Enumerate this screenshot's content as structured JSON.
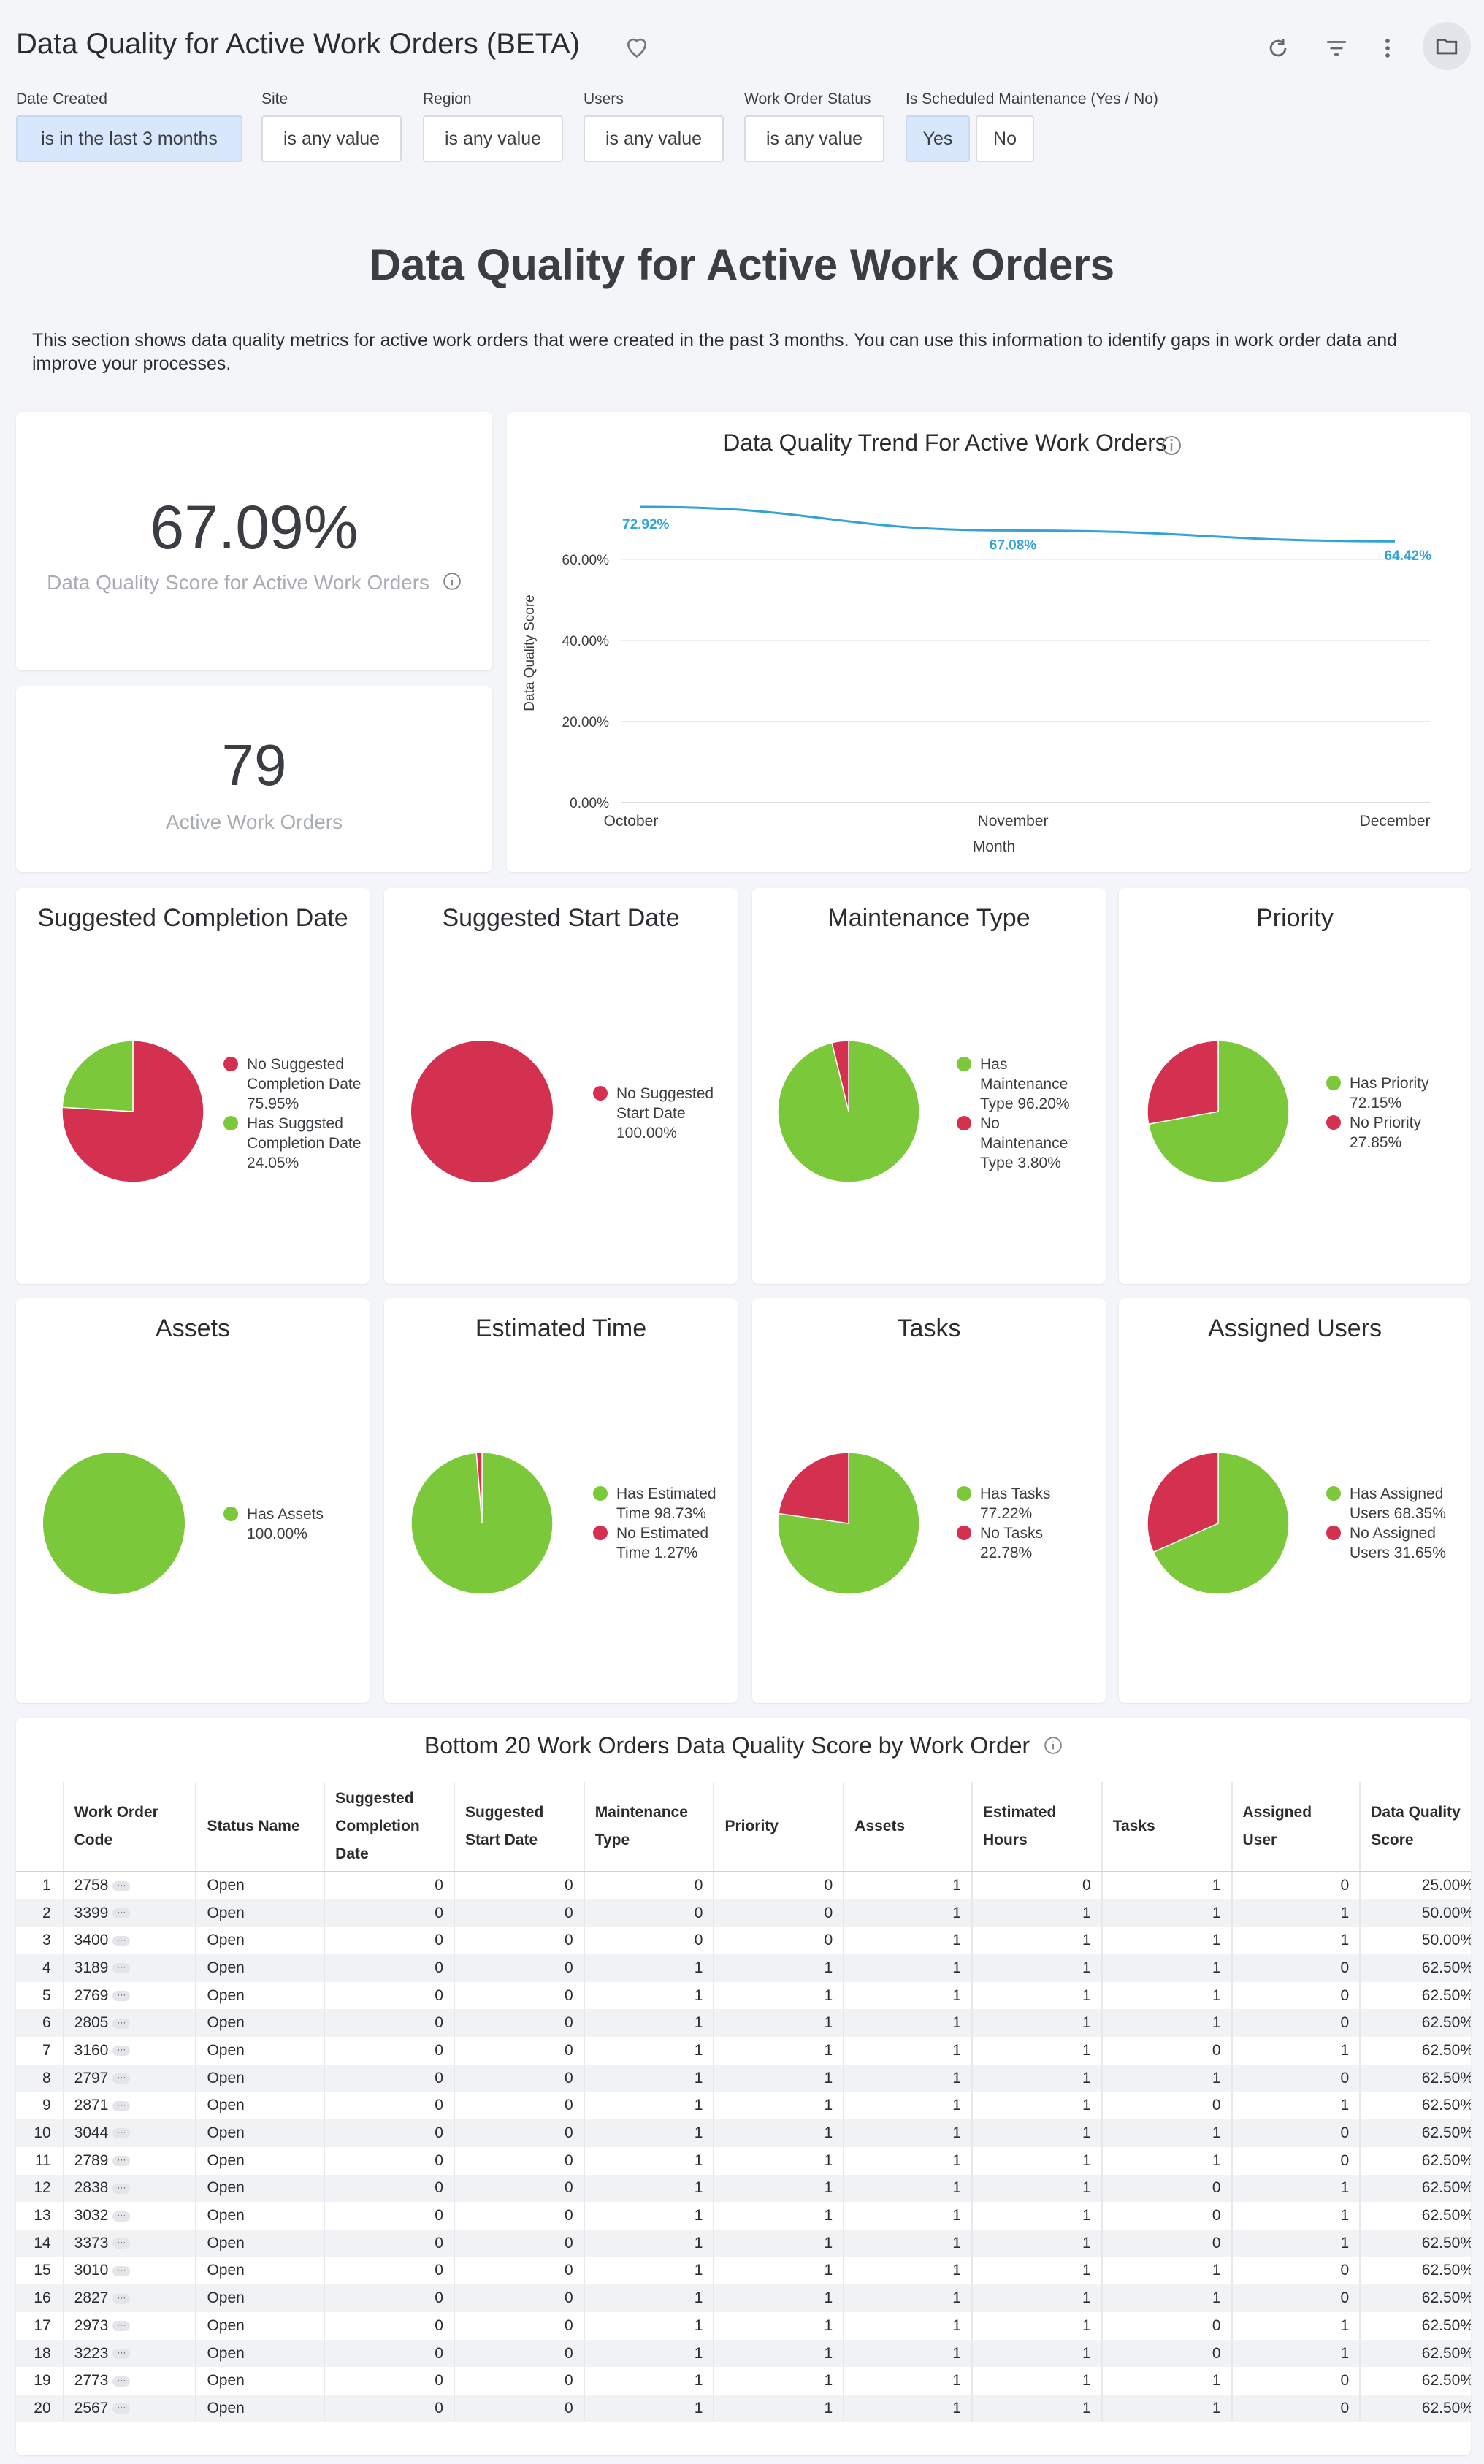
{
  "header": {
    "title": "Data Quality for Active Work Orders (BETA)"
  },
  "filters": [
    {
      "label": "Date Created",
      "value": "is in the last 3 months"
    },
    {
      "label": "Site",
      "value": "is any value"
    },
    {
      "label": "Region",
      "value": "is any value"
    },
    {
      "label": "Users",
      "value": "is any value"
    },
    {
      "label": "Work Order Status",
      "value": "is any value"
    },
    {
      "label": "Is Scheduled Maintenance (Yes / No)",
      "yes": "Yes",
      "no": "No"
    }
  ],
  "section": {
    "title": "Data Quality for Active Work Orders",
    "description": "This section shows data quality metrics for active work orders that were created in the past 3 months. You can use this information to identify gaps in work order data and improve your processes."
  },
  "kpis": {
    "score_value": "67.09%",
    "score_label": "Data Quality Score for Active Work Orders",
    "count_value": "79",
    "count_label": "Active Work Orders"
  },
  "colors": {
    "red": "#d4304f",
    "green": "#7bc83a",
    "line": "#31a3d6"
  },
  "chart_data": [
    {
      "type": "line",
      "title": "Data Quality Trend For Active Work Orders",
      "xlabel": "Month",
      "ylabel": "Data Quality Score",
      "categories": [
        "October",
        "November",
        "December"
      ],
      "values": [
        72.92,
        67.08,
        64.42
      ],
      "value_labels": [
        "72.92%",
        "67.08%",
        "64.42%"
      ],
      "yticks": [
        "0.00%",
        "20.00%",
        "40.00%",
        "60.00%"
      ],
      "ylim": [
        0,
        72.92
      ],
      "grid": true
    },
    {
      "type": "pie",
      "title": "Suggested Completion Date",
      "slices": [
        {
          "label": "No Suggested Completion Date 75.95%",
          "value": 75.95,
          "color": "red"
        },
        {
          "label": "Has Suggsted Completion Date 24.05%",
          "value": 24.05,
          "color": "green"
        }
      ]
    },
    {
      "type": "pie",
      "title": "Suggested Start Date",
      "slices": [
        {
          "label": "No Suggested Start Date 100.00%",
          "value": 100,
          "color": "red"
        }
      ]
    },
    {
      "type": "pie",
      "title": "Maintenance Type",
      "slices": [
        {
          "label": "Has Maintenance Type 96.20%",
          "value": 96.2,
          "color": "green"
        },
        {
          "label": "No Maintenance Type 3.80%",
          "value": 3.8,
          "color": "red"
        }
      ]
    },
    {
      "type": "pie",
      "title": "Priority",
      "slices": [
        {
          "label": "Has Priority 72.15%",
          "value": 72.15,
          "color": "green"
        },
        {
          "label": "No Priority 27.85%",
          "value": 27.85,
          "color": "red"
        }
      ]
    },
    {
      "type": "pie",
      "title": "Assets",
      "slices": [
        {
          "label": "Has Assets 100.00%",
          "value": 100,
          "color": "green"
        }
      ]
    },
    {
      "type": "pie",
      "title": "Estimated Time",
      "slices": [
        {
          "label": "Has Estimated Time 98.73%",
          "value": 98.73,
          "color": "green"
        },
        {
          "label": "No Estimated Time 1.27%",
          "value": 1.27,
          "color": "red"
        }
      ]
    },
    {
      "type": "pie",
      "title": "Tasks",
      "slices": [
        {
          "label": "Has Tasks 77.22%",
          "value": 77.22,
          "color": "green"
        },
        {
          "label": "No Tasks 22.78%",
          "value": 22.78,
          "color": "red"
        }
      ]
    },
    {
      "type": "pie",
      "title": "Assigned Users",
      "slices": [
        {
          "label": "Has Assigned Users 68.35%",
          "value": 68.35,
          "color": "green"
        },
        {
          "label": "No Assigned Users 31.65%",
          "value": 31.65,
          "color": "red"
        }
      ]
    }
  ],
  "table": {
    "title": "Bottom 20 Work Orders Data Quality Score by Work Order",
    "columns": [
      "",
      "Work Order Code",
      "Status Name",
      "Suggested Completion Date",
      "Suggested Start Date",
      "Maintenance Type",
      "Priority",
      "Assets",
      "Estimated Hours",
      "Tasks",
      "Assigned User",
      "Data Quality Score"
    ],
    "rows": [
      [
        "1",
        "2758",
        "Open",
        "0",
        "0",
        "0",
        "0",
        "1",
        "0",
        "1",
        "0",
        "25.00%"
      ],
      [
        "2",
        "3399",
        "Open",
        "0",
        "0",
        "0",
        "0",
        "1",
        "1",
        "1",
        "1",
        "50.00%"
      ],
      [
        "3",
        "3400",
        "Open",
        "0",
        "0",
        "0",
        "0",
        "1",
        "1",
        "1",
        "1",
        "50.00%"
      ],
      [
        "4",
        "3189",
        "Open",
        "0",
        "0",
        "1",
        "1",
        "1",
        "1",
        "1",
        "0",
        "62.50%"
      ],
      [
        "5",
        "2769",
        "Open",
        "0",
        "0",
        "1",
        "1",
        "1",
        "1",
        "1",
        "0",
        "62.50%"
      ],
      [
        "6",
        "2805",
        "Open",
        "0",
        "0",
        "1",
        "1",
        "1",
        "1",
        "1",
        "0",
        "62.50%"
      ],
      [
        "7",
        "3160",
        "Open",
        "0",
        "0",
        "1",
        "1",
        "1",
        "1",
        "0",
        "1",
        "62.50%"
      ],
      [
        "8",
        "2797",
        "Open",
        "0",
        "0",
        "1",
        "1",
        "1",
        "1",
        "1",
        "0",
        "62.50%"
      ],
      [
        "9",
        "2871",
        "Open",
        "0",
        "0",
        "1",
        "1",
        "1",
        "1",
        "0",
        "1",
        "62.50%"
      ],
      [
        "10",
        "3044",
        "Open",
        "0",
        "0",
        "1",
        "1",
        "1",
        "1",
        "1",
        "0",
        "62.50%"
      ],
      [
        "11",
        "2789",
        "Open",
        "0",
        "0",
        "1",
        "1",
        "1",
        "1",
        "1",
        "0",
        "62.50%"
      ],
      [
        "12",
        "2838",
        "Open",
        "0",
        "0",
        "1",
        "1",
        "1",
        "1",
        "0",
        "1",
        "62.50%"
      ],
      [
        "13",
        "3032",
        "Open",
        "0",
        "0",
        "1",
        "1",
        "1",
        "1",
        "0",
        "1",
        "62.50%"
      ],
      [
        "14",
        "3373",
        "Open",
        "0",
        "0",
        "1",
        "1",
        "1",
        "1",
        "0",
        "1",
        "62.50%"
      ],
      [
        "15",
        "3010",
        "Open",
        "0",
        "0",
        "1",
        "1",
        "1",
        "1",
        "1",
        "0",
        "62.50%"
      ],
      [
        "16",
        "2827",
        "Open",
        "0",
        "0",
        "1",
        "1",
        "1",
        "1",
        "1",
        "0",
        "62.50%"
      ],
      [
        "17",
        "2973",
        "Open",
        "0",
        "0",
        "1",
        "1",
        "1",
        "1",
        "0",
        "1",
        "62.50%"
      ],
      [
        "18",
        "3223",
        "Open",
        "0",
        "0",
        "1",
        "1",
        "1",
        "1",
        "0",
        "1",
        "62.50%"
      ],
      [
        "19",
        "2773",
        "Open",
        "0",
        "0",
        "1",
        "1",
        "1",
        "1",
        "1",
        "0",
        "62.50%"
      ],
      [
        "20",
        "2567",
        "Open",
        "0",
        "0",
        "1",
        "1",
        "1",
        "1",
        "1",
        "0",
        "62.50%"
      ]
    ]
  }
}
